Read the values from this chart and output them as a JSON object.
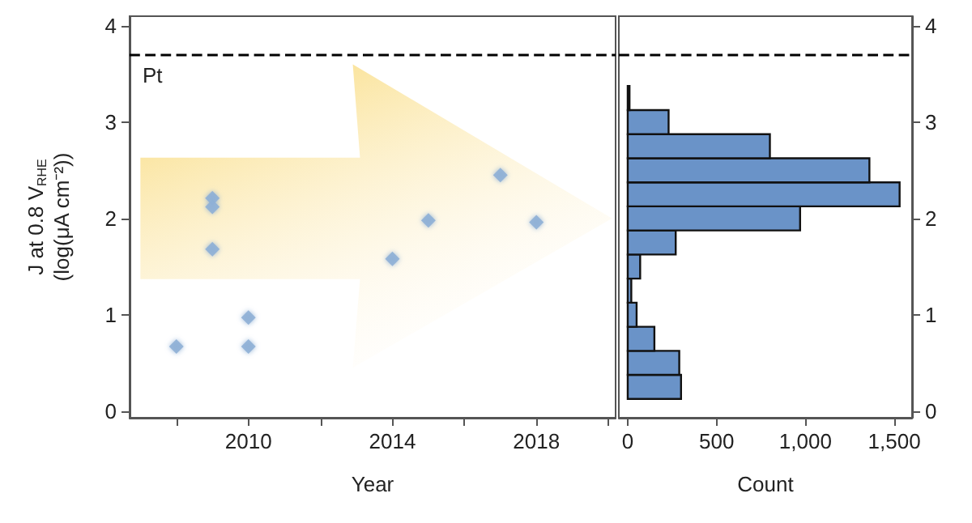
{
  "chart_data": [
    {
      "type": "scatter",
      "xlabel": "Year",
      "ylabel": "J at 0.8 V$_{RHE}$\n(log(μA cm⁻²))",
      "x": [
        2008,
        2009,
        2009,
        2009,
        2010,
        2010,
        2014,
        2015,
        2017,
        2018
      ],
      "values": [
        0.67,
        2.21,
        2.12,
        1.68,
        0.97,
        0.67,
        1.58,
        1.98,
        2.45,
        1.96
      ],
      "color": "#8fb0d6",
      "marker": "diamond",
      "xlim": [
        2006.7,
        2020.2
      ],
      "xticks": [
        {
          "value": 2008,
          "label": null
        },
        2010,
        {
          "value": 2012,
          "label": null
        },
        2014,
        {
          "value": 2016,
          "label": null
        },
        2018,
        {
          "value": 2020,
          "label": null
        }
      ],
      "ylim": [
        -0.07,
        4.1
      ],
      "yticks": [
        0,
        1,
        2,
        3,
        4
      ],
      "ref_lines": [
        {
          "axis": "y",
          "value": 3.7,
          "label": "Pt",
          "color": "#000000",
          "line_style": "dashed"
        }
      ],
      "grid": false
    },
    {
      "type": "histogram",
      "orientation": "horizontal",
      "xlabel": "Count",
      "bins": [
        0.125,
        0.375,
        0.625,
        0.875,
        1.125,
        1.375,
        1.625,
        1.875,
        2.125,
        2.375,
        2.625,
        2.875,
        3.125,
        3.375
      ],
      "values": [
        300,
        290,
        150,
        50,
        20,
        70,
        270,
        970,
        1530,
        1360,
        800,
        230,
        10
      ],
      "color": "#6a93c8",
      "xlim": [
        -50,
        1600
      ],
      "xticks": [
        0,
        500,
        {
          "value": 1000,
          "label": "1,000"
        },
        {
          "value": 1500,
          "label": "1,500"
        }
      ],
      "ylim": [
        -0.07,
        4.1
      ],
      "yticks": [
        0,
        1,
        2,
        3,
        4
      ],
      "ref_lines": [
        {
          "axis": "y",
          "value": 3.7,
          "color": "#000000",
          "line_style": "dashed"
        }
      ],
      "grid": false
    }
  ]
}
